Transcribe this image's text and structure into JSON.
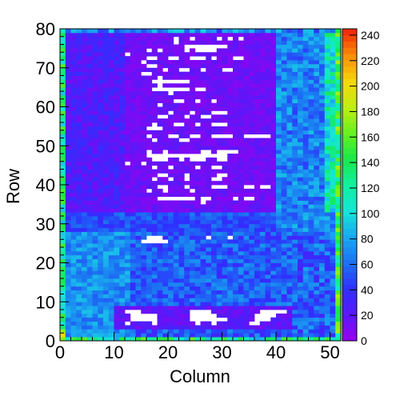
{
  "chart_data": {
    "type": "heatmap",
    "xlabel": "Column",
    "ylabel": "Row",
    "xlim": [
      0,
      52
    ],
    "ylim": [
      0,
      80
    ],
    "x_ticks": [
      "0",
      "10",
      "20",
      "30",
      "40",
      "50"
    ],
    "y_ticks": [
      "0",
      "10",
      "20",
      "30",
      "40",
      "50",
      "60",
      "70",
      "80"
    ],
    "zlim": [
      0,
      245
    ],
    "z_ticks": [
      "0",
      "20",
      "40",
      "60",
      "80",
      "100",
      "120",
      "140",
      "160",
      "180",
      "200",
      "220",
      "240"
    ],
    "colormap": [
      "#9a00f0",
      "#5a18f8",
      "#2f30ff",
      "#1c70f2",
      "#1aa8f0",
      "#14e6d8",
      "#10f0a0",
      "#18e84a",
      "#68f020",
      "#c0ee10",
      "#f6d60c",
      "#f88c06",
      "#f2200a"
    ],
    "grid": false,
    "colorbar": "right",
    "regions": {
      "top_block_rows": [
        33,
        80
      ],
      "top_block_cols": [
        0,
        40
      ],
      "top_block_level": 15,
      "right_band_cols": [
        40,
        50
      ],
      "right_band_level": 60,
      "lower_block_rows": [
        0,
        32
      ],
      "lower_block_level": 45,
      "empty_cells_note_free": true
    }
  }
}
